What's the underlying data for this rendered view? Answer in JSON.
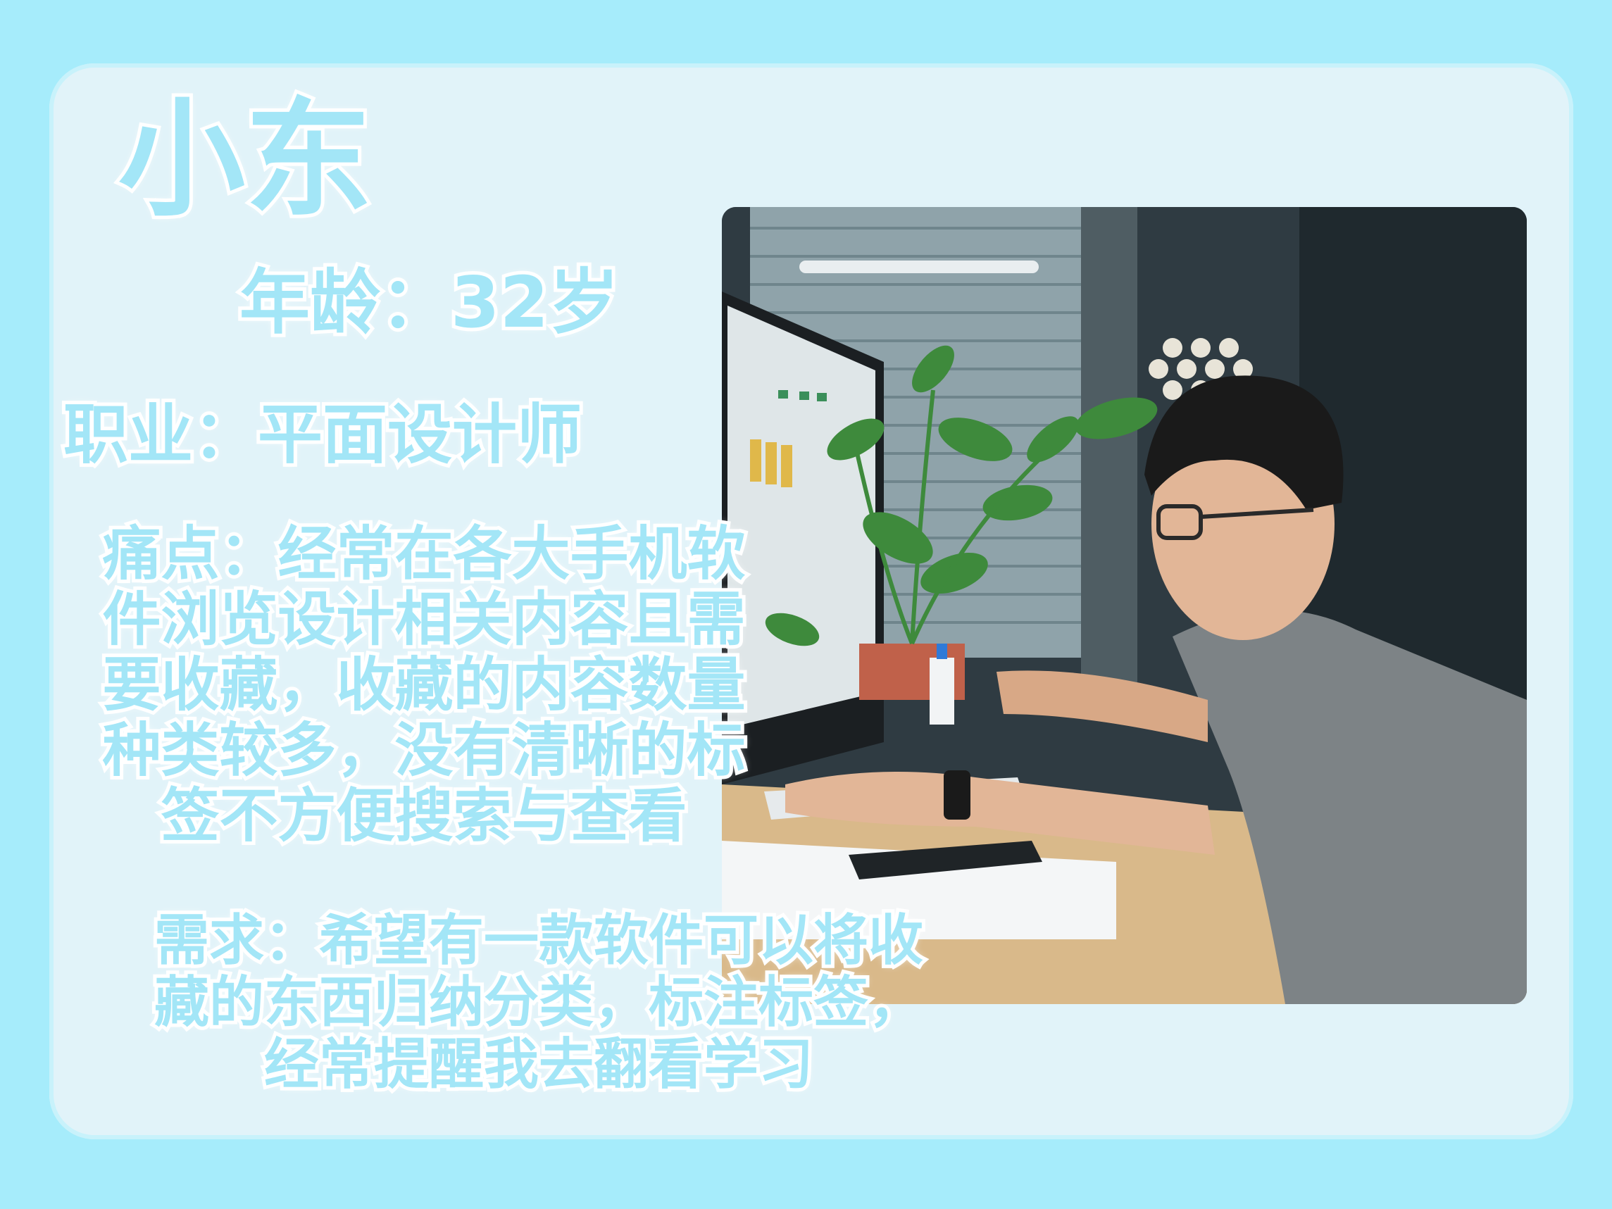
{
  "profile": {
    "name": "小东",
    "age": "年龄：32岁",
    "occupation": "职业：平面设计师",
    "pain_points": [
      "痛点：经常在各大手机软",
      "件浏览设计相关内容且需",
      "要收藏，收藏的内容数量",
      "种类较多，没有清晰的标",
      "签不方便搜索与查看"
    ],
    "needs": [
      "需求：希望有一款软件可以将收",
      "藏的东西归纳分类，标注标签，",
      "经常提醒我去翻看学习"
    ]
  },
  "colors": {
    "outer_background": "#a6ecfb",
    "card_background": "#e1f3f9",
    "text_fill": "#a3e6f7",
    "text_outline": "#ffffff"
  }
}
